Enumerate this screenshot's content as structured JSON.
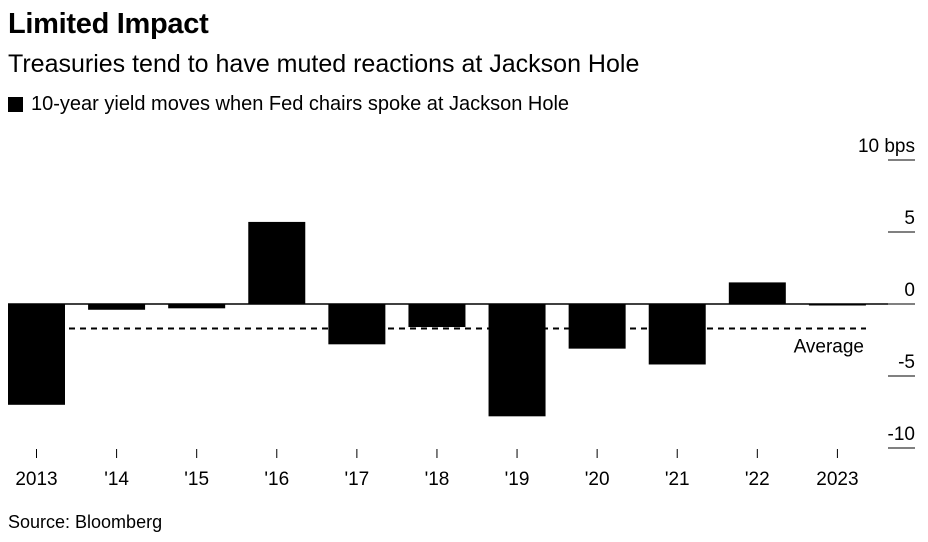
{
  "chart_data": {
    "type": "bar",
    "title": "Limited Impact",
    "subtitle": "Treasuries tend to have muted reactions at Jackson Hole",
    "legend": "10-year yield moves when Fed chairs spoke at Jackson Hole",
    "categories": [
      "2013",
      "'14",
      "'15",
      "'16",
      "'17",
      "'18",
      "'19",
      "'20",
      "'21",
      "'22",
      "2023"
    ],
    "values": [
      -7.0,
      -0.4,
      -0.3,
      5.7,
      -2.8,
      -1.6,
      -7.8,
      -3.1,
      -4.2,
      1.5,
      -0.1
    ],
    "ylim": [
      -10,
      10
    ],
    "yticks": [
      10,
      5,
      0,
      -5,
      -10
    ],
    "ytick_labels": [
      "10 bps",
      "5",
      "0",
      "-5",
      "-10"
    ],
    "average": {
      "value": -1.7,
      "label": "Average"
    },
    "bar_color": "#000000",
    "source": "Source: Bloomberg"
  }
}
